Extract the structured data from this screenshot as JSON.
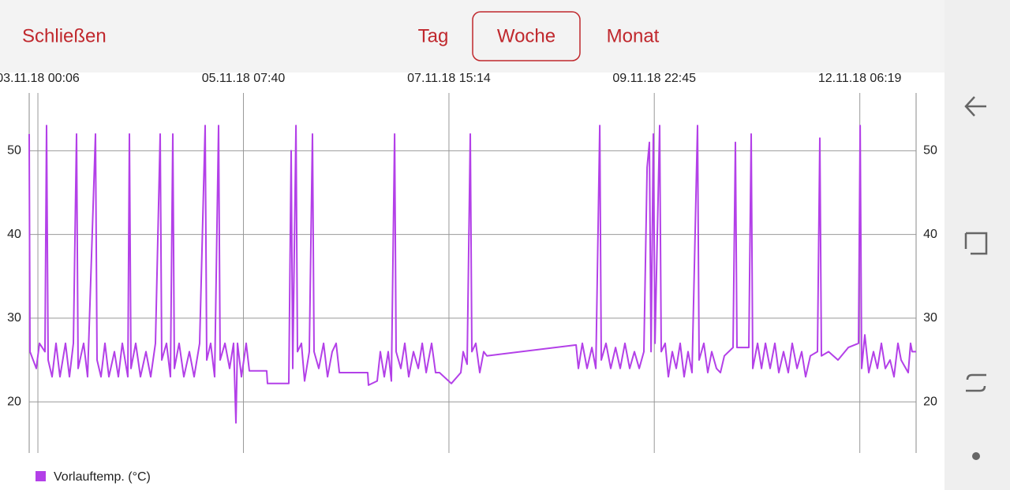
{
  "header": {
    "close": "Schließen",
    "tabs": [
      "Tag",
      "Woche",
      "Monat"
    ],
    "selected_tab": 1
  },
  "chart_data": {
    "type": "line",
    "x": [
      "02.11.18 21:45",
      "02.11.18 21:58",
      "02.11.18 23:40",
      "03.11.18 00:32",
      "03.11.18 02:01",
      "03.11.18 02:27",
      "03.11.18 02:52",
      "03.11.18 03:56",
      "03.11.18 05:00",
      "03.11.18 06:04",
      "03.11.18 07:34",
      "03.11.18 08:38",
      "03.11.18 09:42",
      "03.11.18 10:33",
      "03.11.18 10:59",
      "03.11.18 12:28",
      "03.11.18 13:32",
      "03.11.18 15:40",
      "03.11.18 16:06",
      "03.11.18 17:10",
      "03.11.18 18:14",
      "03.11.18 19:18",
      "03.11.18 20:48",
      "03.11.18 21:52",
      "03.11.18 22:56",
      "04.11.18 00:25",
      "04.11.18 00:51",
      "04.11.18 01:16",
      "04.11.18 02:33",
      "04.11.18 03:50",
      "04.11.18 05:20",
      "04.11.18 06:36",
      "04.11.18 07:53",
      "04.11.18 09:10",
      "04.11.18 09:36",
      "04.11.18 10:52",
      "04.11.18 11:56",
      "04.11.18 12:35",
      "04.11.18 13:00",
      "04.11.18 14:17",
      "04.11.18 15:34",
      "04.11.18 17:04",
      "04.11.18 18:20",
      "04.11.18 19:50",
      "04.11.18 21:20",
      "04.11.18 21:45",
      "04.11.18 22:49",
      "04.11.18 23:53",
      "05.11.18 00:57",
      "05.11.18 01:23",
      "05.11.18 02:40",
      "05.11.18 03:56",
      "05.11.18 05:00",
      "05.11.18 05:39",
      "05.11.18 06:04",
      "05.11.18 07:08",
      "05.11.18 08:25",
      "05.11.18 09:16",
      "05.11.18 13:58",
      "05.11.18 14:11",
      "05.11.18 19:56",
      "05.11.18 20:35",
      "05.11.18 21:00",
      "05.11.18 21:52",
      "05.11.18 22:17",
      "05.11.18 23:21",
      "06.11.18 00:12",
      "06.11.18 01:29",
      "06.11.18 02:20",
      "06.11.18 02:46",
      "06.11.18 04:03",
      "06.11.18 05:20",
      "06.11.18 06:24",
      "06.11.18 07:40",
      "06.11.18 08:44",
      "06.11.18 09:36",
      "06.11.18 17:16",
      "06.11.18 17:29",
      "06.11.18 19:50",
      "06.11.18 20:41",
      "06.11.18 21:45",
      "06.11.18 22:49",
      "06.11.18 23:40",
      "07.11.18 00:32",
      "07.11.18 00:57",
      "07.11.18 02:14",
      "07.11.18 03:18",
      "07.11.18 04:22",
      "07.11.18 05:39",
      "07.11.18 06:56",
      "07.11.18 08:00",
      "07.11.18 09:04",
      "07.11.18 10:33",
      "07.11.18 11:37",
      "07.11.18 12:41",
      "07.11.18 15:53",
      "07.11.18 18:27",
      "07.11.18 19:05",
      "07.11.18 20:09",
      "07.11.18 21:00",
      "07.11.18 21:26",
      "07.11.18 22:30",
      "07.11.18 23:34",
      "08.11.18 00:38",
      "08.11.18 01:29",
      "09.11.18 01:36",
      "09.11.18 02:14",
      "09.11.18 03:18",
      "09.11.18 04:35",
      "09.11.18 05:52",
      "09.11.18 06:56",
      "09.11.18 08:00",
      "09.11.18 08:25",
      "09.11.18 09:42",
      "09.11.18 10:59",
      "09.11.18 12:16",
      "09.11.18 13:32",
      "09.11.18 14:49",
      "09.11.18 16:06",
      "09.11.18 17:23",
      "09.11.18 18:40",
      "09.11.18 19:56",
      "09.11.18 20:48",
      "09.11.18 21:26",
      "09.11.18 21:52",
      "09.11.18 22:30",
      "09.11.18 22:56",
      "10.11.18 00:12",
      "10.11.18 00:38",
      "10.11.18 01:42",
      "10.11.18 02:33",
      "10.11.18 03:37",
      "10.11.18 04:41",
      "10.11.18 05:45",
      "10.11.18 06:49",
      "10.11.18 07:53",
      "10.11.18 08:57",
      "10.11.18 10:27",
      "10.11.18 10:52",
      "10.11.18 12:09",
      "10.11.18 13:13",
      "10.11.18 14:17",
      "10.11.18 15:34",
      "10.11.18 16:38",
      "10.11.18 17:42",
      "10.11.18 20:03",
      "10.11.18 20:41",
      "10.11.18 21:07",
      "11.11.18 00:19",
      "11.11.18 00:57",
      "11.11.18 01:23",
      "11.11.18 02:40",
      "11.11.18 03:44",
      "11.11.18 04:48",
      "11.11.18 06:04",
      "11.11.18 07:21",
      "11.11.18 08:25",
      "11.11.18 09:42",
      "11.11.18 10:59",
      "11.11.18 12:03",
      "11.11.18 13:20",
      "11.11.18 14:36",
      "11.11.18 15:40",
      "11.11.18 16:57",
      "11.11.18 18:52",
      "11.11.18 19:31",
      "11.11.18 19:56",
      "11.11.18 21:52",
      "12.11.18 00:25",
      "12.11.18 03:12",
      "12.11.18 05:58",
      "12.11.18 06:24",
      "12.11.18 06:49",
      "12.11.18 07:40",
      "12.11.18 08:44",
      "12.11.18 10:01",
      "12.11.18 11:05",
      "12.11.18 12:09",
      "12.11.18 13:13",
      "12.11.18 14:30",
      "12.11.18 15:34",
      "12.11.18 16:38",
      "12.11.18 17:29",
      "12.11.18 19:24",
      "12.11.18 20:03",
      "12.11.18 20:28",
      "12.11.18 21:32"
    ],
    "series": [
      {
        "name": "Vorlauftemp. (°C)",
        "color": "#b340e8",
        "values": [
          52,
          26,
          24,
          27,
          26,
          53,
          25,
          23,
          27,
          23,
          27,
          23,
          27,
          52,
          24,
          27,
          23,
          52,
          25,
          23,
          27,
          23,
          26,
          23,
          27,
          23,
          52,
          24,
          27,
          23,
          26,
          23,
          27,
          52,
          25,
          27,
          23,
          52,
          24,
          27,
          23,
          26,
          23,
          27,
          53,
          25,
          27,
          23,
          53,
          25,
          27,
          24,
          27,
          17.5,
          27,
          23,
          27,
          23.7,
          23.7,
          22.2,
          22.2,
          50,
          24,
          53,
          26,
          27,
          22.5,
          26,
          52,
          26,
          24,
          27,
          23,
          26,
          27,
          23.5,
          23.5,
          22,
          22.5,
          26,
          23,
          26,
          22.5,
          52,
          26,
          24,
          27,
          23,
          26,
          24,
          27,
          23.5,
          27,
          23.5,
          23.5,
          22.2,
          23.5,
          26,
          24.5,
          52,
          26,
          27,
          23.5,
          26,
          25.5,
          26.8,
          24,
          27,
          24,
          26.5,
          24,
          53,
          25,
          27,
          24,
          26.5,
          24,
          27,
          24,
          26,
          24,
          26,
          48,
          51,
          26,
          52,
          27,
          53,
          26,
          27,
          23,
          26,
          24,
          27,
          23,
          26,
          23.5,
          53,
          25,
          27,
          23.5,
          26,
          24,
          23.5,
          25.5,
          26.5,
          51,
          26.5,
          26.5,
          52,
          24,
          27,
          24,
          27,
          24,
          27,
          23.5,
          26,
          23.5,
          27,
          24,
          26,
          23,
          25.5,
          26,
          51.5,
          25.5,
          26,
          25,
          26.5,
          27,
          53,
          24,
          28,
          23.5,
          26,
          24,
          27,
          24,
          25,
          23,
          27,
          25,
          23.5,
          27,
          26,
          26
        ]
      }
    ],
    "xlim": [
      "02.11.18 21:45",
      "12.11.18 21:32"
    ],
    "xticks": [
      "03.11.18 00:06",
      "05.11.18 07:40",
      "07.11.18 15:14",
      "09.11.18 22:45",
      "12.11.18 06:19"
    ],
    "ylim": [
      13.9,
      56.9
    ],
    "yticks": [
      20,
      30,
      40,
      50
    ],
    "grid": true,
    "legend": "bottom-left"
  }
}
